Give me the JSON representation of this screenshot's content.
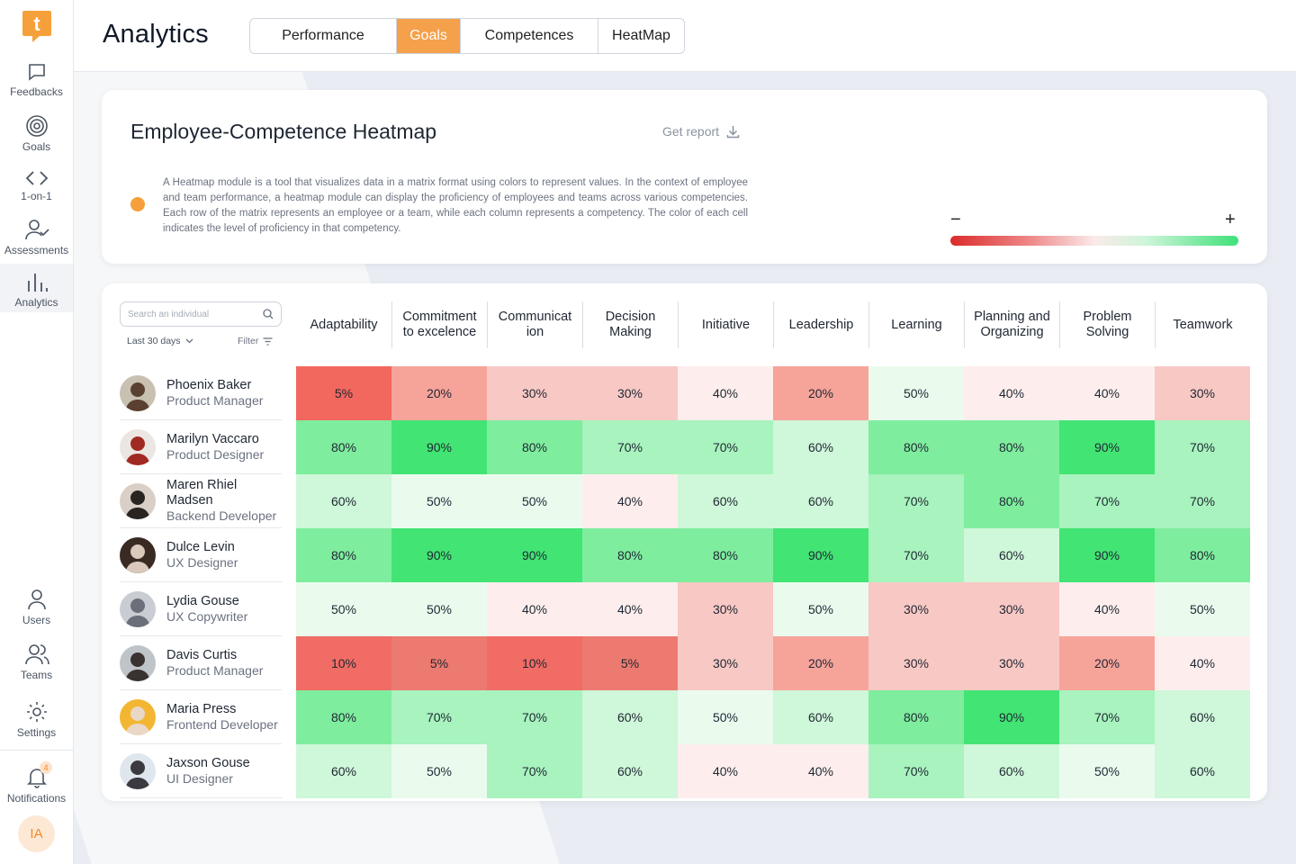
{
  "sidebar": {
    "items": [
      {
        "label": "Feedbacks",
        "icon": "chat-icon"
      },
      {
        "label": "Goals",
        "icon": "target-icon"
      },
      {
        "label": "1-on-1",
        "icon": "code-icon"
      },
      {
        "label": "Assessments",
        "icon": "user-check-icon"
      },
      {
        "label": "Analytics",
        "icon": "bar-chart-icon"
      },
      {
        "label": "Users",
        "icon": "user-icon"
      },
      {
        "label": "Teams",
        "icon": "users-icon"
      },
      {
        "label": "Settings",
        "icon": "gear-icon"
      },
      {
        "label": "Notifications",
        "icon": "bell-icon"
      }
    ],
    "notification_count": "4",
    "user_initials": "IA",
    "logo_letter": "t"
  },
  "header": {
    "title": "Analytics",
    "tabs": [
      {
        "label": "Performance"
      },
      {
        "label": "Goals"
      },
      {
        "label": "Competences"
      },
      {
        "label": "HeatMap"
      }
    ]
  },
  "info": {
    "title": "Employee-Competence Heatmap",
    "get_report": "Get report",
    "description": "A Heatmap module is a tool that visualizes data in a matrix format using colors to represent values. In the context of employee and team performance, a heatmap module can display the proficiency of employees and teams across various competencies. Each row of the matrix represents an employee or a team, while each column represents a competency. The color of each cell indicates the level of proficiency in that competency.",
    "scale_min": "−",
    "scale_max": "+"
  },
  "controls": {
    "search_placeholder": "Search an individual",
    "period": "Last 30 days",
    "filter": "Filter"
  },
  "chart_data": {
    "type": "heatmap",
    "columns": [
      "Adaptability",
      "Commitment to excelence",
      "Communicat ion",
      "Decision Making",
      "Initiative",
      "Leadership",
      "Learning",
      "Planning and Organizing",
      "Problem Solving",
      "Teamwork"
    ],
    "rows": [
      {
        "name": "Phoenix Baker",
        "role": "Product Manager",
        "values": [
          "5%",
          "20%",
          "30%",
          "30%",
          "40%",
          "20%",
          "50%",
          "40%",
          "40%",
          "30%"
        ]
      },
      {
        "name": "Marilyn Vaccaro",
        "role": "Product Designer",
        "values": [
          "80%",
          "90%",
          "80%",
          "70%",
          "70%",
          "60%",
          "80%",
          "80%",
          "90%",
          "70%"
        ]
      },
      {
        "name": "Maren Rhiel Madsen",
        "role": "Backend Developer",
        "values": [
          "60%",
          "50%",
          "50%",
          "40%",
          "60%",
          "60%",
          "70%",
          "80%",
          "70%",
          "70%"
        ]
      },
      {
        "name": "Dulce Levin",
        "role": "UX Designer",
        "values": [
          "80%",
          "90%",
          "90%",
          "80%",
          "80%",
          "90%",
          "70%",
          "60%",
          "90%",
          "80%"
        ]
      },
      {
        "name": "Lydia Gouse",
        "role": "UX Copywriter",
        "values": [
          "50%",
          "50%",
          "40%",
          "40%",
          "30%",
          "50%",
          "30%",
          "30%",
          "40%",
          "50%"
        ]
      },
      {
        "name": "Davis Curtis",
        "role": "Product Manager",
        "values": [
          "10%",
          "5%",
          "10%",
          "5%",
          "30%",
          "20%",
          "30%",
          "30%",
          "20%",
          "40%"
        ]
      },
      {
        "name": "Maria Press",
        "role": "Frontend Developer",
        "values": [
          "80%",
          "70%",
          "70%",
          "60%",
          "50%",
          "60%",
          "80%",
          "90%",
          "70%",
          "60%"
        ]
      },
      {
        "name": "Jaxson Gouse",
        "role": "UI Designer",
        "values": [
          "60%",
          "50%",
          "70%",
          "60%",
          "40%",
          "40%",
          "70%",
          "60%",
          "50%",
          "60%"
        ]
      }
    ]
  },
  "colors": {
    "accent": "#f5a04a",
    "low": "#dc2b2b",
    "high": "#3fe07a"
  }
}
